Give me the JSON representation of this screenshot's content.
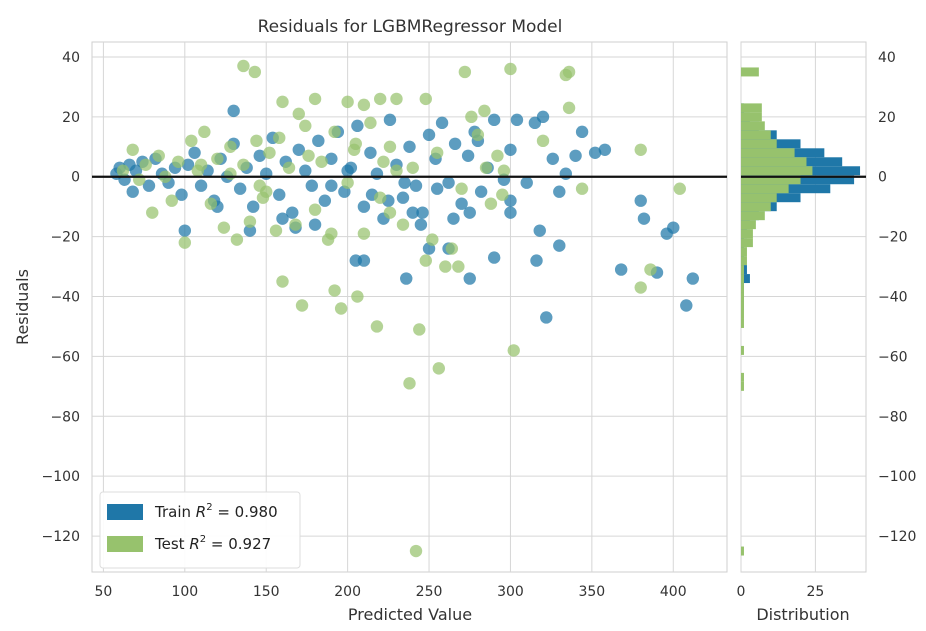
{
  "colors": {
    "train": "#1f77a8",
    "test": "#97c26d",
    "grid": "#d6d6d6",
    "zero_line": "#111111",
    "panel_bg": "#ffffff"
  },
  "chart_data": {
    "type": "scatter",
    "title": "Residuals for LGBMRegressor Model",
    "xlabel": "Predicted Value",
    "ylabel": "Residuals",
    "xlim": [
      43,
      433
    ],
    "ylim": [
      -132,
      45
    ],
    "xticks": [
      "50",
      "100",
      "150",
      "200",
      "250",
      "300",
      "350",
      "400"
    ],
    "yticks": [
      "40",
      "20",
      "0",
      "−20",
      "−40",
      "−60",
      "−80",
      "−100",
      "−120"
    ],
    "grid": true,
    "legend_position": "lower-left",
    "series": [
      {
        "name": "Train",
        "legend_label": "Train R² = 0.980",
        "legend_prefix": "Train",
        "legend_stat": "R",
        "legend_value": "= 0.980",
        "r2": 0.98,
        "points": [
          [
            58,
            1
          ],
          [
            60,
            3
          ],
          [
            63,
            -1
          ],
          [
            66,
            4
          ],
          [
            68,
            -5
          ],
          [
            70,
            2
          ],
          [
            74,
            5
          ],
          [
            78,
            -3
          ],
          [
            82,
            6
          ],
          [
            86,
            1
          ],
          [
            90,
            -2
          ],
          [
            94,
            3
          ],
          [
            98,
            -6
          ],
          [
            102,
            4
          ],
          [
            106,
            8
          ],
          [
            110,
            -3
          ],
          [
            114,
            2
          ],
          [
            118,
            -8
          ],
          [
            122,
            6
          ],
          [
            126,
            0
          ],
          [
            130,
            11
          ],
          [
            134,
            -4
          ],
          [
            138,
            3
          ],
          [
            142,
            -10
          ],
          [
            146,
            7
          ],
          [
            150,
            1
          ],
          [
            154,
            13
          ],
          [
            158,
            -6
          ],
          [
            162,
            5
          ],
          [
            166,
            -12
          ],
          [
            170,
            9
          ],
          [
            174,
            2
          ],
          [
            178,
            -3
          ],
          [
            182,
            12
          ],
          [
            186,
            -8
          ],
          [
            190,
            6
          ],
          [
            194,
            15
          ],
          [
            198,
            -5
          ],
          [
            202,
            3
          ],
          [
            206,
            17
          ],
          [
            210,
            -10
          ],
          [
            214,
            8
          ],
          [
            218,
            1
          ],
          [
            222,
            -14
          ],
          [
            226,
            19
          ],
          [
            230,
            4
          ],
          [
            234,
            -7
          ],
          [
            238,
            10
          ],
          [
            242,
            -3
          ],
          [
            246,
            -12
          ],
          [
            250,
            14
          ],
          [
            254,
            6
          ],
          [
            258,
            18
          ],
          [
            262,
            -2
          ],
          [
            266,
            11
          ],
          [
            270,
            -9
          ],
          [
            274,
            7
          ],
          [
            278,
            15
          ],
          [
            282,
            -5
          ],
          [
            286,
            3
          ],
          [
            290,
            19
          ],
          [
            296,
            -1
          ],
          [
            300,
            9
          ],
          [
            304,
            19
          ],
          [
            310,
            -2
          ],
          [
            316,
            -28
          ],
          [
            318,
            -18
          ],
          [
            320,
            20
          ],
          [
            322,
            -47
          ],
          [
            326,
            6
          ],
          [
            330,
            -5
          ],
          [
            334,
            1
          ],
          [
            340,
            7
          ],
          [
            344,
            15
          ],
          [
            352,
            8
          ],
          [
            358,
            9
          ],
          [
            368,
            -31
          ],
          [
            380,
            -8
          ],
          [
            382,
            -14
          ],
          [
            396,
            -19
          ],
          [
            400,
            -17
          ],
          [
            408,
            -43
          ],
          [
            412,
            -34
          ],
          [
            130,
            22
          ],
          [
            168,
            -17
          ],
          [
            205,
            -28
          ],
          [
            210,
            -28
          ],
          [
            236,
            -34
          ],
          [
            250,
            -24
          ],
          [
            262,
            -24
          ],
          [
            275,
            -34
          ],
          [
            290,
            -27
          ],
          [
            300,
            -12
          ],
          [
            330,
            -23
          ],
          [
            240,
            -12
          ],
          [
            275,
            -12
          ],
          [
            390,
            -32
          ],
          [
            100,
            -18
          ],
          [
            120,
            -10
          ],
          [
            140,
            -18
          ],
          [
            160,
            -14
          ],
          [
            180,
            -16
          ],
          [
            190,
            -3
          ],
          [
            200,
            2
          ],
          [
            215,
            -6
          ],
          [
            225,
            -8
          ],
          [
            235,
            -2
          ],
          [
            245,
            -16
          ],
          [
            255,
            -4
          ],
          [
            265,
            -14
          ],
          [
            280,
            12
          ],
          [
            300,
            -8
          ],
          [
            315,
            18
          ]
        ]
      },
      {
        "name": "Test",
        "legend_label": "Test R² = 0.927",
        "legend_prefix": "Test",
        "legend_stat": "R",
        "legend_value": "= 0.927",
        "r2": 0.927,
        "points": [
          [
            62,
            2
          ],
          [
            68,
            9
          ],
          [
            72,
            -1
          ],
          [
            76,
            4
          ],
          [
            80,
            -12
          ],
          [
            84,
            7
          ],
          [
            88,
            0
          ],
          [
            92,
            -8
          ],
          [
            96,
            5
          ],
          [
            100,
            -22
          ],
          [
            104,
            12
          ],
          [
            108,
            2
          ],
          [
            112,
            15
          ],
          [
            116,
            -9
          ],
          [
            120,
            6
          ],
          [
            124,
            -17
          ],
          [
            128,
            10
          ],
          [
            132,
            -21
          ],
          [
            136,
            4
          ],
          [
            140,
            -15
          ],
          [
            144,
            12
          ],
          [
            148,
            -7
          ],
          [
            152,
            8
          ],
          [
            156,
            -18
          ],
          [
            160,
            -35
          ],
          [
            164,
            3
          ],
          [
            168,
            -16
          ],
          [
            172,
            -43
          ],
          [
            176,
            7
          ],
          [
            180,
            -11
          ],
          [
            184,
            5
          ],
          [
            188,
            -21
          ],
          [
            192,
            -38
          ],
          [
            196,
            -44
          ],
          [
            200,
            -2
          ],
          [
            204,
            9
          ],
          [
            206,
            -40
          ],
          [
            210,
            -19
          ],
          [
            214,
            18
          ],
          [
            218,
            -50
          ],
          [
            222,
            5
          ],
          [
            226,
            -12
          ],
          [
            230,
            2
          ],
          [
            234,
            -16
          ],
          [
            238,
            -69
          ],
          [
            242,
            -125
          ],
          [
            244,
            -51
          ],
          [
            248,
            -28
          ],
          [
            252,
            -21
          ],
          [
            256,
            -64
          ],
          [
            260,
            -30
          ],
          [
            264,
            -24
          ],
          [
            268,
            -30
          ],
          [
            272,
            35
          ],
          [
            276,
            20
          ],
          [
            280,
            14
          ],
          [
            284,
            22
          ],
          [
            288,
            -9
          ],
          [
            292,
            7
          ],
          [
            296,
            2
          ],
          [
            300,
            36
          ],
          [
            302,
            -58
          ],
          [
            320,
            12
          ],
          [
            334,
            34
          ],
          [
            336,
            35
          ],
          [
            336,
            23
          ],
          [
            380,
            -37
          ],
          [
            380,
            9
          ],
          [
            386,
            -31
          ],
          [
            404,
            -4
          ],
          [
            344,
            -4
          ],
          [
            160,
            25
          ],
          [
            170,
            21
          ],
          [
            180,
            26
          ],
          [
            200,
            25
          ],
          [
            230,
            26
          ],
          [
            248,
            26
          ],
          [
            136,
            37
          ],
          [
            143,
            35
          ],
          [
            210,
            24
          ],
          [
            220,
            26
          ],
          [
            158,
            13
          ],
          [
            174,
            17
          ],
          [
            192,
            15
          ],
          [
            205,
            11
          ],
          [
            226,
            10
          ],
          [
            110,
            4
          ],
          [
            128,
            1
          ],
          [
            146,
            -3
          ],
          [
            150,
            -5
          ],
          [
            190,
            -19
          ],
          [
            220,
            -7
          ],
          [
            240,
            3
          ],
          [
            255,
            8
          ],
          [
            270,
            -4
          ],
          [
            285,
            3
          ],
          [
            295,
            -6
          ]
        ]
      }
    ],
    "hist": {
      "xlabel": "Distribution",
      "xlim": [
        0,
        42
      ],
      "xticks": [
        "0",
        "25"
      ],
      "bin_centers": [
        38,
        35,
        32,
        29,
        26,
        23,
        20,
        17,
        14,
        11,
        8,
        5,
        2,
        -1,
        -4,
        -7,
        -10,
        -13,
        -16,
        -19,
        -22,
        -25,
        -28,
        -31,
        -34,
        -37,
        -40,
        -43,
        -46,
        -49,
        -52,
        -55,
        -58,
        -61,
        -64,
        -67,
        -70,
        -125
      ],
      "train_counts": [
        0,
        0,
        0,
        0,
        0,
        1,
        3,
        6,
        12,
        20,
        28,
        34,
        40,
        38,
        30,
        20,
        12,
        6,
        3,
        2,
        1,
        1,
        1,
        2,
        3,
        1,
        1,
        1,
        0,
        0,
        0,
        0,
        0,
        0,
        0,
        0,
        0,
        0
      ],
      "test_counts": [
        0,
        6,
        0,
        0,
        0,
        7,
        7,
        8,
        10,
        12,
        18,
        22,
        24,
        20,
        16,
        12,
        10,
        8,
        5,
        4,
        4,
        2,
        2,
        1,
        1,
        1,
        1,
        1,
        1,
        1,
        0,
        0,
        1,
        0,
        0,
        1,
        1,
        1
      ]
    }
  }
}
